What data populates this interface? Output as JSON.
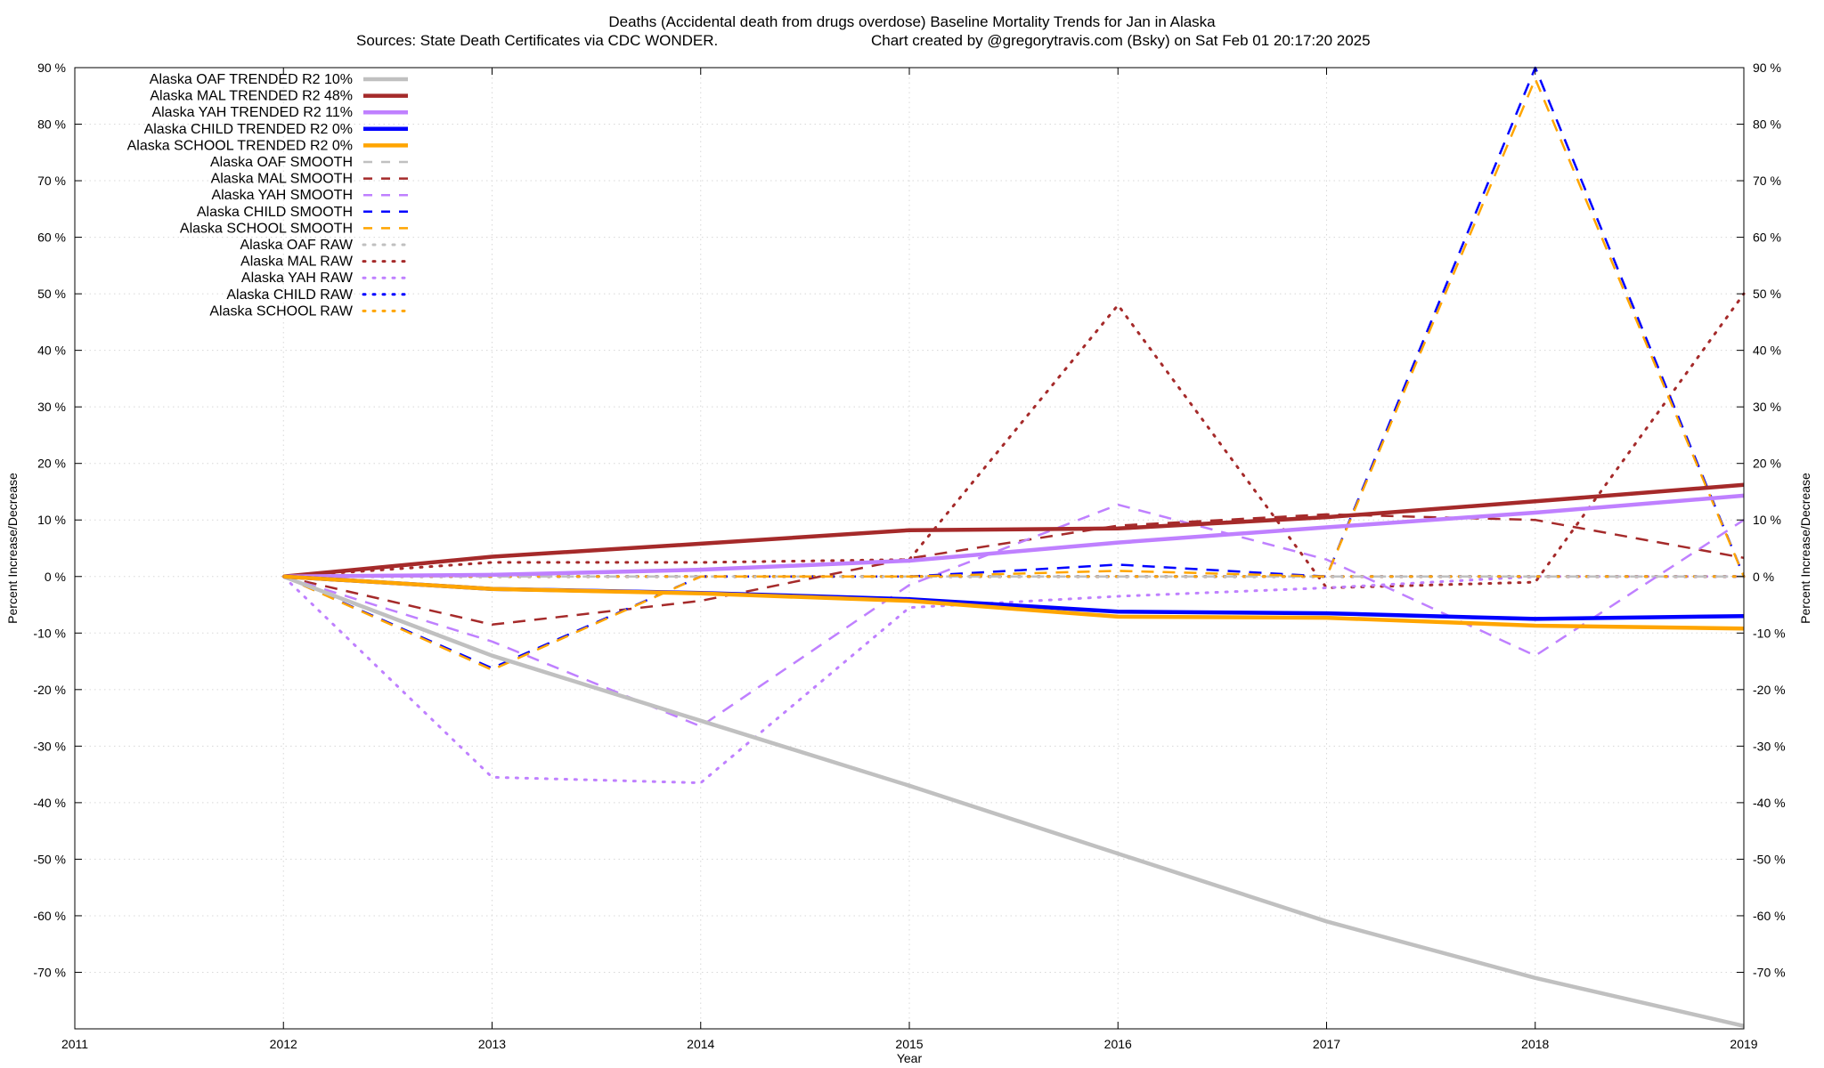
{
  "chart_data": {
    "type": "line",
    "title": "Deaths (Accidental death from drugs overdose)  Baseline Mortality Trends for Jan in Alaska",
    "subtitle_left": "Sources: State Death Certificates via CDC WONDER.",
    "subtitle_right": "Chart created by @gregorytravis.com (Bsky) on Sat Feb 01 20:17:20 2025",
    "xlabel": "Year",
    "ylabel_left": "Percent Increase/Decrease",
    "ylabel_right": "Percent Increase/Decrease",
    "xlim": [
      2011,
      2019
    ],
    "ylim": [
      -80,
      90
    ],
    "x_ticks": [
      "2011",
      "2012",
      "2013",
      "2014",
      "2015",
      "2016",
      "2017",
      "2018",
      "2019"
    ],
    "y_ticks": [
      "90 %",
      "80 %",
      "70 %",
      "60 %",
      "50 %",
      "40 %",
      "30 %",
      "20 %",
      "10 %",
      "0 %",
      "-10 %",
      "-20 %",
      "-30 %",
      "-40 %",
      "-50 %",
      "-60 %",
      "-70 %"
    ],
    "grid": true,
    "legend_position": "top-left",
    "series": [
      {
        "name": "Alaska OAF TRENDED R2  10%",
        "style": "solid",
        "color": "#c0c0c0",
        "x": [
          2012,
          2013,
          2014,
          2015,
          2016,
          2017,
          2018,
          2019
        ],
        "y": [
          0,
          -14,
          -25.5,
          -37,
          -49,
          -61,
          -71,
          -79.5
        ]
      },
      {
        "name": "Alaska MAL TRENDED R2  48%",
        "style": "solid",
        "color": "#a52a2a",
        "x": [
          2012,
          2013,
          2014,
          2015,
          2016,
          2017,
          2018,
          2019
        ],
        "y": [
          0,
          3.5,
          5.8,
          8.2,
          8.5,
          10.5,
          13.3,
          16.2
        ]
      },
      {
        "name": "Alaska YAH TRENDED R2  11%",
        "style": "solid",
        "color": "#bf80ff",
        "x": [
          2012,
          2013,
          2014,
          2015,
          2016,
          2017,
          2018,
          2019
        ],
        "y": [
          0,
          0.3,
          1.2,
          2.8,
          6,
          8.7,
          11.3,
          14.3
        ]
      },
      {
        "name": "Alaska CHILD TRENDED R2   0%",
        "style": "solid",
        "color": "#0000ff",
        "x": [
          2012,
          2013,
          2014,
          2015,
          2016,
          2017,
          2018,
          2019
        ],
        "y": [
          0,
          -2.2,
          -2.9,
          -4,
          -6.2,
          -6.5,
          -7.5,
          -7
        ]
      },
      {
        "name": "Alaska SCHOOL TRENDED R2   0%",
        "style": "solid",
        "color": "#ffa500",
        "x": [
          2012,
          2013,
          2014,
          2015,
          2016,
          2017,
          2018,
          2019
        ],
        "y": [
          0,
          -2.2,
          -3,
          -4.3,
          -7.1,
          -7.3,
          -8.7,
          -9.2
        ]
      },
      {
        "name": "Alaska OAF SMOOTH",
        "style": "dashed",
        "color": "#c0c0c0",
        "x": [
          2012,
          2013,
          2014,
          2015,
          2016,
          2017,
          2018,
          2019
        ],
        "y": [
          0,
          0,
          0,
          0,
          0,
          0,
          0,
          0
        ]
      },
      {
        "name": "Alaska MAL SMOOTH",
        "style": "dashed",
        "color": "#a52a2a",
        "x": [
          2012,
          2013,
          2014,
          2015,
          2016,
          2017,
          2018,
          2019
        ],
        "y": [
          0,
          -8.5,
          -4.3,
          3.2,
          9,
          11,
          10,
          3.3
        ]
      },
      {
        "name": "Alaska YAH SMOOTH",
        "style": "dashed",
        "color": "#bf80ff",
        "x": [
          2012,
          2013,
          2014,
          2015,
          2016,
          2017,
          2018,
          2019
        ],
        "y": [
          0,
          -11.5,
          -26.5,
          -1.5,
          12.7,
          3,
          -14,
          10
        ]
      },
      {
        "name": "Alaska CHILD SMOOTH",
        "style": "dashed",
        "color": "#0000ff",
        "x": [
          2012,
          2013,
          2014,
          2015,
          2016,
          2017,
          2018,
          2019
        ],
        "y": [
          0,
          -16.2,
          0,
          0,
          2.1,
          0,
          90,
          0
        ]
      },
      {
        "name": "Alaska SCHOOL SMOOTH",
        "style": "dashed",
        "color": "#ffa500",
        "x": [
          2012,
          2013,
          2014,
          2015,
          2016,
          2017,
          2018,
          2019
        ],
        "y": [
          0,
          -16.5,
          0,
          0,
          1,
          0,
          88,
          0
        ]
      },
      {
        "name": "Alaska OAF RAW",
        "style": "dotted",
        "color": "#c0c0c0",
        "x": [
          2012,
          2013,
          2014,
          2015,
          2016,
          2017,
          2018,
          2019
        ],
        "y": [
          0,
          0,
          0,
          0,
          0,
          0,
          0,
          0
        ]
      },
      {
        "name": "Alaska MAL RAW",
        "style": "dotted",
        "color": "#a52a2a",
        "x": [
          2012,
          2013,
          2014,
          2015,
          2016,
          2017,
          2018,
          2019
        ],
        "y": [
          0,
          2.5,
          2.5,
          3,
          48,
          -2,
          -1,
          50
        ]
      },
      {
        "name": "Alaska YAH RAW",
        "style": "dotted",
        "color": "#bf80ff",
        "x": [
          2012,
          2013,
          2014,
          2015,
          2016,
          2017,
          2018,
          2019
        ],
        "y": [
          0,
          -35.5,
          -36.5,
          -5.5,
          -3.5,
          -2,
          0,
          0
        ]
      },
      {
        "name": "Alaska CHILD RAW",
        "style": "dotted",
        "color": "#0000ff",
        "x": [
          2012,
          2013,
          2014,
          2015,
          2016,
          2017,
          2018,
          2019
        ],
        "y": [
          0,
          0,
          0,
          0,
          0,
          0,
          0,
          0
        ]
      },
      {
        "name": "Alaska SCHOOL RAW",
        "style": "dotted",
        "color": "#ffa500",
        "x": [
          2012,
          2013,
          2014,
          2015,
          2016,
          2017,
          2018,
          2019
        ],
        "y": [
          0,
          0,
          0,
          0,
          0,
          0,
          0,
          0
        ]
      }
    ]
  }
}
